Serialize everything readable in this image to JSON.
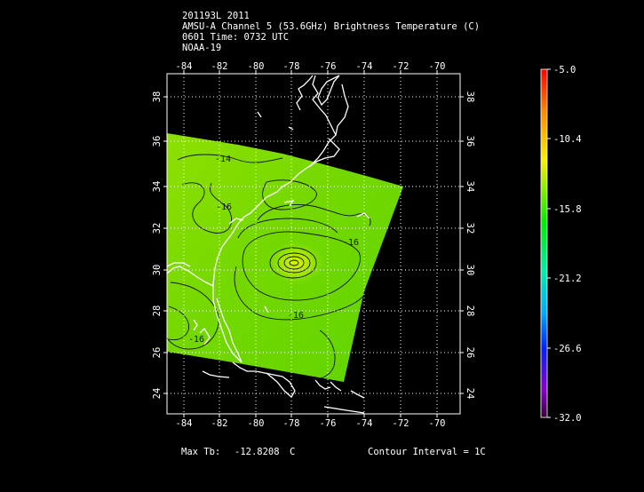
{
  "header": {
    "line1": "201193L 2011",
    "line2": "AMSU-A Channel 5 (53.6GHz) Brightness Temperature (C)",
    "line3": "0601 Time: 0732 UTC",
    "line4": "NOAA-19"
  },
  "map": {
    "lon_ticks": [
      "-84",
      "-82",
      "-80",
      "-78",
      "-76",
      "-74",
      "-72",
      "-70"
    ],
    "lat_ticks": [
      "24",
      "26",
      "28",
      "30",
      "32",
      "34",
      "36",
      "38"
    ],
    "contour_labels": [
      "-14",
      "-16",
      "-16",
      "-16",
      "-16"
    ],
    "swath_color": "#8ee000",
    "grid": true
  },
  "colorbar": {
    "labels": [
      "-5.0",
      "-10.4",
      "-15.8",
      "-21.2",
      "-26.6",
      "-32.0"
    ],
    "colors": [
      "#ff0000",
      "#ff8800",
      "#ffee00",
      "#00ee00",
      "#00eeaa",
      "#00aaff",
      "#0022ff",
      "#8800cc",
      "#330033"
    ]
  },
  "footer": {
    "max_label": "Max Tb:",
    "max_value": "-12.8208",
    "max_unit": "C",
    "contour_text": "Contour Interval = 1C"
  }
}
